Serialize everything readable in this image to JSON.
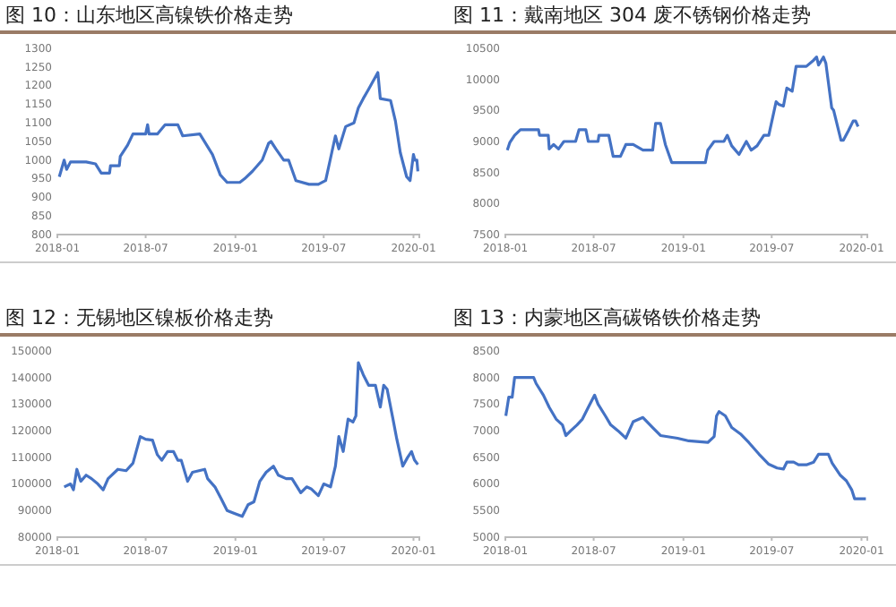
{
  "chart_data": [
    {
      "type": "line",
      "title": "图 10：山东地区高镍铁价格走势",
      "color": "#4472c4",
      "xlim": [
        "2018-01-01",
        "2020-01-13"
      ],
      "xticks": [
        "2018-01",
        "2018-07",
        "2019-01",
        "2019-07",
        "2020-01"
      ],
      "ylim": [
        800,
        1300
      ],
      "yticks": [
        800,
        850,
        900,
        950,
        1000,
        1050,
        1100,
        1150,
        1200,
        1250,
        1300
      ],
      "x": [
        "2018-01-05",
        "2018-01-15",
        "2018-01-20",
        "2018-01-28",
        "2018-03-01",
        "2018-03-20",
        "2018-04-01",
        "2018-04-18",
        "2018-04-20",
        "2018-05-08",
        "2018-05-10",
        "2018-05-25",
        "2018-06-05",
        "2018-07-01",
        "2018-07-05",
        "2018-07-08",
        "2018-07-25",
        "2018-08-10",
        "2018-09-05",
        "2018-09-15",
        "2018-10-20",
        "2018-11-15",
        "2018-12-01",
        "2018-12-15",
        "2019-01-10",
        "2019-01-20",
        "2019-02-05",
        "2019-02-25",
        "2019-03-10",
        "2019-03-15",
        "2019-03-25",
        "2019-04-10",
        "2019-04-20",
        "2019-05-05",
        "2019-06-01",
        "2019-06-20",
        "2019-07-05",
        "2019-07-15",
        "2019-07-25",
        "2019-08-01",
        "2019-08-15",
        "2019-09-01",
        "2019-09-10",
        "2019-09-20",
        "2019-10-01",
        "2019-10-20",
        "2019-10-25",
        "2019-11-15",
        "2019-11-25",
        "2019-12-05",
        "2019-12-18",
        "2019-12-25",
        "2020-01-01",
        "2020-01-04",
        "2020-01-08",
        "2020-01-10"
      ],
      "values": [
        955,
        1000,
        975,
        995,
        995,
        990,
        965,
        965,
        985,
        985,
        1010,
        1040,
        1070,
        1070,
        1095,
        1070,
        1070,
        1095,
        1095,
        1065,
        1070,
        1015,
        960,
        940,
        940,
        950,
        970,
        1000,
        1045,
        1050,
        1030,
        1000,
        1000,
        945,
        935,
        935,
        945,
        1005,
        1065,
        1030,
        1090,
        1100,
        1140,
        1165,
        1190,
        1235,
        1165,
        1160,
        1105,
        1020,
        955,
        945,
        1015,
        1000,
        1000,
        970
      ]
    },
    {
      "type": "line",
      "title": "图 11：戴南地区 304 废不锈钢价格走势",
      "color": "#4472c4",
      "xlim": [
        "2018-01-01",
        "2020-01-13"
      ],
      "xticks": [
        "2018-01",
        "2018-07",
        "2019-01",
        "2019-07",
        "2020-01"
      ],
      "ylim": [
        7500,
        10500
      ],
      "yticks": [
        7500,
        8000,
        8500,
        9000,
        9500,
        10000,
        10500
      ],
      "x": [
        "2018-01-05",
        "2018-01-10",
        "2018-01-20",
        "2018-02-01",
        "2018-03-10",
        "2018-03-12",
        "2018-03-30",
        "2018-04-01",
        "2018-04-10",
        "2018-04-20",
        "2018-05-01",
        "2018-05-25",
        "2018-06-01",
        "2018-06-15",
        "2018-06-20",
        "2018-07-10",
        "2018-07-12",
        "2018-08-01",
        "2018-08-10",
        "2018-08-25",
        "2018-09-05",
        "2018-09-20",
        "2018-10-10",
        "2018-10-30",
        "2018-11-05",
        "2018-11-15",
        "2018-11-25",
        "2018-12-08",
        "2019-02-15",
        "2019-02-20",
        "2019-03-05",
        "2019-03-25",
        "2019-04-01",
        "2019-04-10",
        "2019-04-25",
        "2019-05-10",
        "2019-05-20",
        "2019-06-01",
        "2019-06-15",
        "2019-06-25",
        "2019-07-10",
        "2019-07-15",
        "2019-07-25",
        "2019-08-01",
        "2019-08-12",
        "2019-08-20",
        "2019-09-10",
        "2019-09-25",
        "2019-10-01",
        "2019-10-05",
        "2019-10-15",
        "2019-10-20",
        "2019-11-01",
        "2019-11-05",
        "2019-11-20",
        "2019-11-25",
        "2019-12-05",
        "2019-12-15",
        "2019-12-20",
        "2019-12-25"
      ],
      "values": [
        8860,
        8980,
        9100,
        9190,
        9190,
        9100,
        9100,
        8880,
        8950,
        8880,
        9000,
        9000,
        9190,
        9190,
        9000,
        9000,
        9100,
        9100,
        8760,
        8760,
        8950,
        8950,
        8860,
        8860,
        9290,
        9290,
        8950,
        8660,
        8660,
        8860,
        9000,
        9000,
        9100,
        8930,
        8790,
        9000,
        8860,
        8930,
        9100,
        9100,
        9640,
        9600,
        9570,
        9860,
        9810,
        10210,
        10210,
        10310,
        10360,
        10230,
        10360,
        10260,
        9540,
        9500,
        9020,
        9020,
        9170,
        9330,
        9330,
        9240
      ]
    },
    {
      "type": "line",
      "title": "图 12：无锡地区镍板价格走势",
      "color": "#4472c4",
      "xlim": [
        "2018-01-01",
        "2020-01-13"
      ],
      "xticks": [
        "2018-01",
        "2018-07",
        "2019-01",
        "2019-07",
        "2020-01"
      ],
      "ylim": [
        80000,
        150000
      ],
      "yticks": [
        80000,
        90000,
        100000,
        110000,
        120000,
        130000,
        140000,
        150000
      ],
      "x": [
        "2018-01-15",
        "2018-01-28",
        "2018-02-03",
        "2018-02-10",
        "2018-02-18",
        "2018-03-01",
        "2018-03-12",
        "2018-03-25",
        "2018-04-05",
        "2018-04-15",
        "2018-05-05",
        "2018-05-22",
        "2018-06-05",
        "2018-06-20",
        "2018-07-01",
        "2018-07-15",
        "2018-07-25",
        "2018-08-03",
        "2018-08-15",
        "2018-08-27",
        "2018-09-05",
        "2018-09-12",
        "2018-09-25",
        "2018-10-05",
        "2018-10-30",
        "2018-11-05",
        "2018-11-20",
        "2018-12-03",
        "2018-12-15",
        "2018-12-30",
        "2019-01-15",
        "2019-01-27",
        "2019-02-08",
        "2019-02-20",
        "2019-03-05",
        "2019-03-20",
        "2019-03-30",
        "2019-04-15",
        "2019-04-27",
        "2019-05-15",
        "2019-05-27",
        "2019-06-05",
        "2019-06-20",
        "2019-07-01",
        "2019-07-15",
        "2019-07-25",
        "2019-08-01",
        "2019-08-10",
        "2019-08-20",
        "2019-08-30",
        "2019-09-05",
        "2019-09-10",
        "2019-09-20",
        "2019-10-01",
        "2019-10-15",
        "2019-10-25",
        "2019-11-01",
        "2019-11-08",
        "2019-11-20",
        "2019-11-28",
        "2019-12-10",
        "2019-12-20",
        "2019-12-28",
        "2020-01-03",
        "2020-01-10"
      ],
      "values": [
        98900,
        100000,
        97800,
        105500,
        101000,
        103300,
        102000,
        100000,
        97800,
        102000,
        105500,
        105000,
        107800,
        117800,
        116800,
        116500,
        111000,
        108900,
        112200,
        112200,
        108900,
        108900,
        101000,
        104400,
        105500,
        102000,
        98900,
        94400,
        90000,
        88900,
        87800,
        92200,
        93300,
        101000,
        104400,
        106700,
        103300,
        102000,
        102000,
        96700,
        98900,
        98200,
        95600,
        100000,
        98900,
        106700,
        117800,
        112200,
        124400,
        123300,
        125600,
        145600,
        141100,
        137100,
        137100,
        128900,
        137100,
        135600,
        124400,
        116700,
        106700,
        110000,
        112200,
        109000,
        107300
      ]
    },
    {
      "type": "line",
      "title": "图 13：内蒙地区高碳铬铁价格走势",
      "color": "#4472c4",
      "xlim": [
        "2018-01-01",
        "2020-01-13"
      ],
      "xticks": [
        "2018-01",
        "2018-07",
        "2019-01",
        "2019-07",
        "2020-01"
      ],
      "ylim": [
        5000,
        8500
      ],
      "yticks": [
        5000,
        5500,
        6000,
        6500,
        7000,
        7500,
        8000,
        8500
      ],
      "x": [
        "2018-01-02",
        "2018-01-08",
        "2018-01-15",
        "2018-01-20",
        "2018-02-28",
        "2018-03-05",
        "2018-03-20",
        "2018-04-01",
        "2018-04-15",
        "2018-04-28",
        "2018-05-05",
        "2018-05-15",
        "2018-05-28",
        "2018-06-08",
        "2018-06-20",
        "2018-07-03",
        "2018-07-10",
        "2018-07-25",
        "2018-08-05",
        "2018-08-20",
        "2018-09-05",
        "2018-09-20",
        "2018-10-10",
        "2018-10-30",
        "2018-11-15",
        "2018-12-20",
        "2019-01-12",
        "2019-02-20",
        "2019-03-05",
        "2019-03-10",
        "2019-03-15",
        "2019-03-28",
        "2019-04-10",
        "2019-04-28",
        "2019-05-15",
        "2019-06-05",
        "2019-06-25",
        "2019-07-12",
        "2019-07-25",
        "2019-08-01",
        "2019-08-15",
        "2019-08-25",
        "2019-09-10",
        "2019-09-25",
        "2019-10-05",
        "2019-10-25",
        "2019-11-02",
        "2019-11-18",
        "2019-12-01",
        "2019-12-12",
        "2019-12-18",
        "2020-01-10"
      ],
      "values": [
        7280,
        7630,
        7630,
        8000,
        8000,
        7890,
        7670,
        7440,
        7220,
        7110,
        6910,
        7000,
        7110,
        7220,
        7440,
        7670,
        7500,
        7280,
        7110,
        7000,
        6860,
        7170,
        7250,
        7060,
        6910,
        6860,
        6810,
        6780,
        6890,
        7280,
        7360,
        7280,
        7060,
        6940,
        6780,
        6560,
        6370,
        6300,
        6280,
        6410,
        6410,
        6360,
        6360,
        6410,
        6560,
        6560,
        6390,
        6170,
        6060,
        5890,
        5720,
        5720
      ]
    }
  ]
}
